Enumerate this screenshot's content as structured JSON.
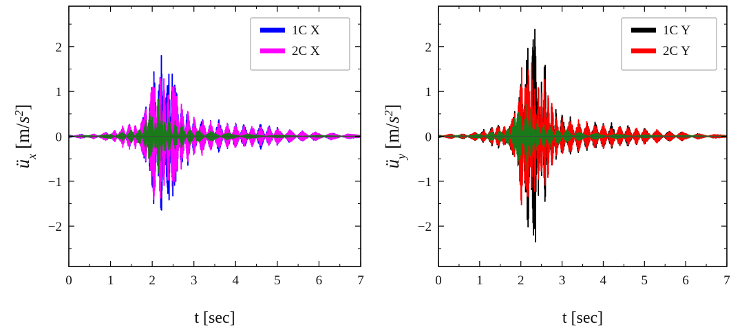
{
  "chart_data": [
    {
      "type": "line",
      "xlabel": "t [sec]",
      "ylabel": {
        "symbol": "ü",
        "subscript": "x",
        "unit_prefix": " [m/",
        "unit_base": "s",
        "unit_exp": "2",
        "unit_suffix": "]"
      },
      "xlim": [
        0,
        7
      ],
      "ylim": [
        -2.9,
        2.9
      ],
      "xticks": [
        "0",
        "1",
        "2",
        "3",
        "4",
        "5",
        "6",
        "7"
      ],
      "yticks": [
        "−2",
        "−1",
        "0",
        "1",
        "2"
      ],
      "ytick_values": [
        -2,
        -1,
        0,
        1,
        2
      ],
      "grid": false,
      "legend_position": "top-right",
      "series": [
        {
          "name": "1C X",
          "color": "#0000ff",
          "peaks": [
            [
              0.0,
              0.03
            ],
            [
              0.3,
              -0.05
            ],
            [
              0.6,
              0.05
            ],
            [
              0.9,
              -0.08
            ],
            [
              1.1,
              0.12
            ],
            [
              1.3,
              -0.2
            ],
            [
              1.45,
              0.3
            ],
            [
              1.6,
              -0.25
            ],
            [
              1.75,
              0.35
            ],
            [
              1.85,
              0.65
            ],
            [
              1.95,
              -0.9
            ],
            [
              2.05,
              -1.6
            ],
            [
              2.15,
              1.1
            ],
            [
              2.22,
              1.8
            ],
            [
              2.3,
              -0.6
            ],
            [
              2.4,
              -1.6
            ],
            [
              2.48,
              1.4
            ],
            [
              2.6,
              0.9
            ],
            [
              2.7,
              -0.9
            ],
            [
              2.85,
              0.7
            ],
            [
              3.0,
              -0.45
            ],
            [
              3.2,
              0.45
            ],
            [
              3.4,
              -0.35
            ],
            [
              3.6,
              0.4
            ],
            [
              3.8,
              -0.3
            ],
            [
              4.0,
              0.3
            ],
            [
              4.2,
              -0.3
            ],
            [
              4.4,
              0.25
            ],
            [
              4.6,
              -0.3
            ],
            [
              4.8,
              0.25
            ],
            [
              5.0,
              -0.2
            ],
            [
              5.3,
              0.15
            ],
            [
              5.6,
              -0.12
            ],
            [
              5.9,
              0.1
            ],
            [
              6.3,
              -0.08
            ],
            [
              6.7,
              0.05
            ],
            [
              7.0,
              0.02
            ]
          ]
        },
        {
          "name": "2C X",
          "color": "#ff00ff",
          "peaks": [
            [
              0.0,
              0.02
            ],
            [
              0.3,
              -0.04
            ],
            [
              0.6,
              0.05
            ],
            [
              0.9,
              -0.1
            ],
            [
              1.1,
              0.14
            ],
            [
              1.3,
              -0.25
            ],
            [
              1.45,
              0.32
            ],
            [
              1.6,
              -0.3
            ],
            [
              1.75,
              0.38
            ],
            [
              1.85,
              0.6
            ],
            [
              1.95,
              -0.85
            ],
            [
              2.05,
              -1.5
            ],
            [
              2.12,
              0.8
            ],
            [
              2.2,
              -1.7
            ],
            [
              2.28,
              1.75
            ],
            [
              2.38,
              -1.4
            ],
            [
              2.48,
              1.3
            ],
            [
              2.6,
              0.85
            ],
            [
              2.7,
              -0.85
            ],
            [
              2.85,
              0.65
            ],
            [
              3.0,
              -0.45
            ],
            [
              3.2,
              0.45
            ],
            [
              3.4,
              -0.35
            ],
            [
              3.6,
              0.35
            ],
            [
              3.8,
              -0.3
            ],
            [
              4.0,
              0.3
            ],
            [
              4.2,
              -0.25
            ],
            [
              4.4,
              0.25
            ],
            [
              4.6,
              -0.25
            ],
            [
              4.8,
              0.22
            ],
            [
              5.0,
              -0.2
            ],
            [
              5.3,
              0.15
            ],
            [
              5.6,
              -0.12
            ],
            [
              5.9,
              0.1
            ],
            [
              6.3,
              -0.08
            ],
            [
              6.7,
              0.05
            ],
            [
              7.0,
              0.02
            ]
          ]
        },
        {
          "name": "",
          "color": "#1a7a1a",
          "peaks": [
            [
              0.0,
              0.01
            ],
            [
              0.5,
              -0.02
            ],
            [
              1.0,
              0.05
            ],
            [
              1.3,
              -0.1
            ],
            [
              1.5,
              0.15
            ],
            [
              1.7,
              -0.2
            ],
            [
              1.85,
              0.35
            ],
            [
              1.92,
              -0.6
            ],
            [
              2.0,
              -0.45
            ],
            [
              2.08,
              0.45
            ],
            [
              2.15,
              -1.0
            ],
            [
              2.22,
              0.7
            ],
            [
              2.3,
              -0.5
            ],
            [
              2.4,
              0.45
            ],
            [
              2.55,
              -0.35
            ],
            [
              2.7,
              0.3
            ],
            [
              2.9,
              -0.2
            ],
            [
              3.1,
              0.15
            ],
            [
              3.4,
              -0.12
            ],
            [
              3.8,
              0.08
            ],
            [
              4.3,
              -0.05
            ],
            [
              5.0,
              0.03
            ],
            [
              6.0,
              -0.02
            ],
            [
              7.0,
              0.01
            ]
          ]
        }
      ]
    },
    {
      "type": "line",
      "xlabel": "t [sec]",
      "ylabel": {
        "symbol": "ü",
        "subscript": "y",
        "unit_prefix": " [m/",
        "unit_base": "s",
        "unit_exp": "2",
        "unit_suffix": "]"
      },
      "xlim": [
        0,
        7
      ],
      "ylim": [
        -2.9,
        2.9
      ],
      "xticks": [
        "0",
        "1",
        "2",
        "3",
        "4",
        "5",
        "6",
        "7"
      ],
      "yticks": [
        "−2",
        "−1",
        "0",
        "1",
        "2"
      ],
      "ytick_values": [
        -2,
        -1,
        0,
        1,
        2
      ],
      "grid": false,
      "legend_position": "top-right",
      "series": [
        {
          "name": "1C Y",
          "color": "#000000",
          "peaks": [
            [
              0.0,
              0.03
            ],
            [
              0.3,
              -0.05
            ],
            [
              0.6,
              0.06
            ],
            [
              0.9,
              -0.1
            ],
            [
              1.1,
              0.15
            ],
            [
              1.3,
              -0.22
            ],
            [
              1.45,
              0.3
            ],
            [
              1.6,
              -0.28
            ],
            [
              1.75,
              0.3
            ],
            [
              1.85,
              0.55
            ],
            [
              1.95,
              -0.85
            ],
            [
              2.02,
              -1.4
            ],
            [
              2.1,
              1.3
            ],
            [
              2.18,
              2.2
            ],
            [
              2.26,
              -1.6
            ],
            [
              2.35,
              -2.85
            ],
            [
              2.42,
              1.6
            ],
            [
              2.5,
              -1.3
            ],
            [
              2.58,
              1.95
            ],
            [
              2.66,
              -1.0
            ],
            [
              2.75,
              0.9
            ],
            [
              2.85,
              -0.6
            ],
            [
              3.0,
              0.5
            ],
            [
              3.2,
              -0.45
            ],
            [
              3.4,
              0.4
            ],
            [
              3.6,
              -0.35
            ],
            [
              3.8,
              0.35
            ],
            [
              4.0,
              -0.3
            ],
            [
              4.2,
              0.3
            ],
            [
              4.4,
              -0.25
            ],
            [
              4.6,
              0.25
            ],
            [
              4.8,
              -0.2
            ],
            [
              5.0,
              0.18
            ],
            [
              5.3,
              -0.15
            ],
            [
              5.6,
              0.12
            ],
            [
              5.9,
              -0.1
            ],
            [
              6.3,
              0.06
            ],
            [
              6.7,
              -0.04
            ],
            [
              7.0,
              0.02
            ]
          ]
        },
        {
          "name": "2C Y",
          "color": "#ff0000",
          "peaks": [
            [
              0.0,
              0.02
            ],
            [
              0.3,
              -0.05
            ],
            [
              0.6,
              0.05
            ],
            [
              0.9,
              -0.1
            ],
            [
              1.1,
              0.14
            ],
            [
              1.3,
              -0.2
            ],
            [
              1.45,
              0.28
            ],
            [
              1.6,
              -0.26
            ],
            [
              1.75,
              0.3
            ],
            [
              1.85,
              0.5
            ],
            [
              1.95,
              -0.8
            ],
            [
              2.02,
              -1.6
            ],
            [
              2.1,
              1.2
            ],
            [
              2.18,
              1.6
            ],
            [
              2.26,
              -1.75
            ],
            [
              2.34,
              1.5
            ],
            [
              2.42,
              -1.2
            ],
            [
              2.5,
              1.3
            ],
            [
              2.58,
              -1.4
            ],
            [
              2.66,
              1.1
            ],
            [
              2.75,
              -0.85
            ],
            [
              2.85,
              0.6
            ],
            [
              3.0,
              -0.45
            ],
            [
              3.2,
              0.45
            ],
            [
              3.4,
              -0.4
            ],
            [
              3.6,
              0.35
            ],
            [
              3.8,
              -0.3
            ],
            [
              4.0,
              0.3
            ],
            [
              4.2,
              -0.25
            ],
            [
              4.4,
              0.25
            ],
            [
              4.6,
              -0.22
            ],
            [
              4.8,
              0.2
            ],
            [
              5.0,
              -0.18
            ],
            [
              5.3,
              0.15
            ],
            [
              5.6,
              -0.12
            ],
            [
              5.9,
              0.1
            ],
            [
              6.3,
              -0.06
            ],
            [
              6.7,
              0.04
            ],
            [
              7.0,
              0.02
            ]
          ]
        },
        {
          "name": "",
          "color": "#1a7a1a",
          "peaks": [
            [
              0.0,
              0.01
            ],
            [
              0.5,
              -0.02
            ],
            [
              1.0,
              0.05
            ],
            [
              1.3,
              -0.1
            ],
            [
              1.5,
              0.15
            ],
            [
              1.7,
              -0.2
            ],
            [
              1.85,
              0.4
            ],
            [
              1.92,
              -0.7
            ],
            [
              2.0,
              -0.5
            ],
            [
              2.08,
              0.5
            ],
            [
              2.15,
              -0.85
            ],
            [
              2.22,
              0.6
            ],
            [
              2.3,
              -0.45
            ],
            [
              2.4,
              0.4
            ],
            [
              2.55,
              -0.3
            ],
            [
              2.7,
              0.25
            ],
            [
              2.9,
              -0.2
            ],
            [
              3.1,
              0.15
            ],
            [
              3.4,
              -0.1
            ],
            [
              3.8,
              0.07
            ],
            [
              4.3,
              -0.05
            ],
            [
              5.0,
              0.03
            ],
            [
              6.0,
              -0.02
            ],
            [
              7.0,
              0.01
            ]
          ]
        }
      ]
    }
  ]
}
